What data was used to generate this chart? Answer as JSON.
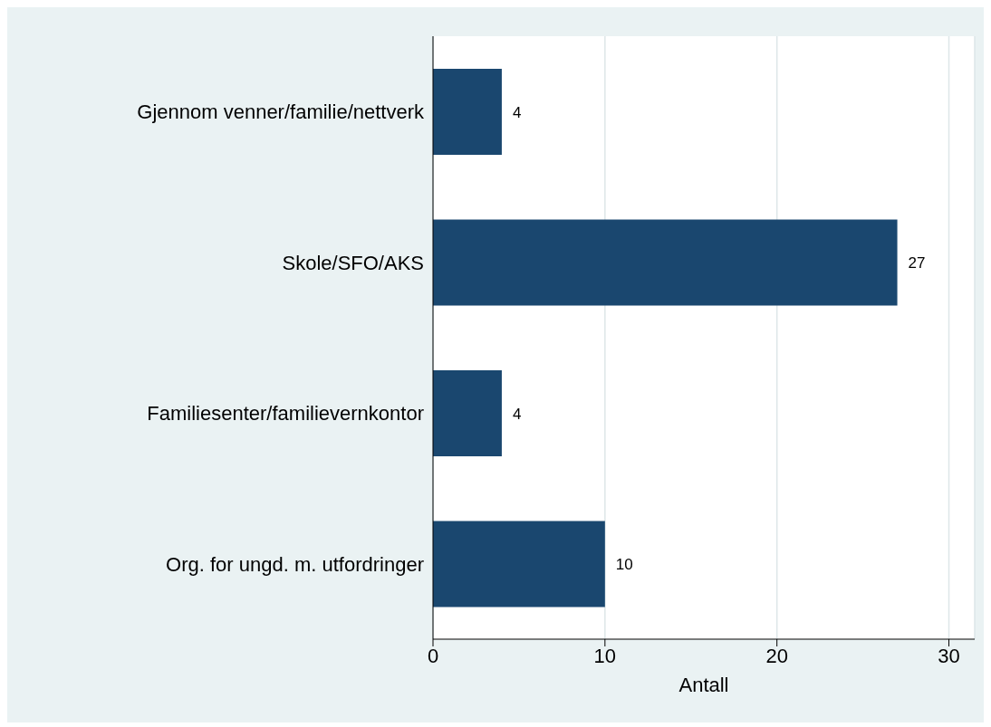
{
  "chart_data": {
    "type": "bar",
    "orientation": "horizontal",
    "categories": [
      "Gjennom venner/familie/nettverk",
      "Skole/SFO/AKS",
      "Familiesenter/familievernkontor",
      "Org. for ungd. m. utfordringer"
    ],
    "values": [
      4,
      27,
      4,
      10
    ],
    "color": "#1a476f",
    "xlim": [
      0,
      31.5
    ],
    "xticks": [
      0,
      10,
      20,
      30
    ],
    "xlabel": "Antall",
    "grid": "x",
    "data_labels": true
  }
}
